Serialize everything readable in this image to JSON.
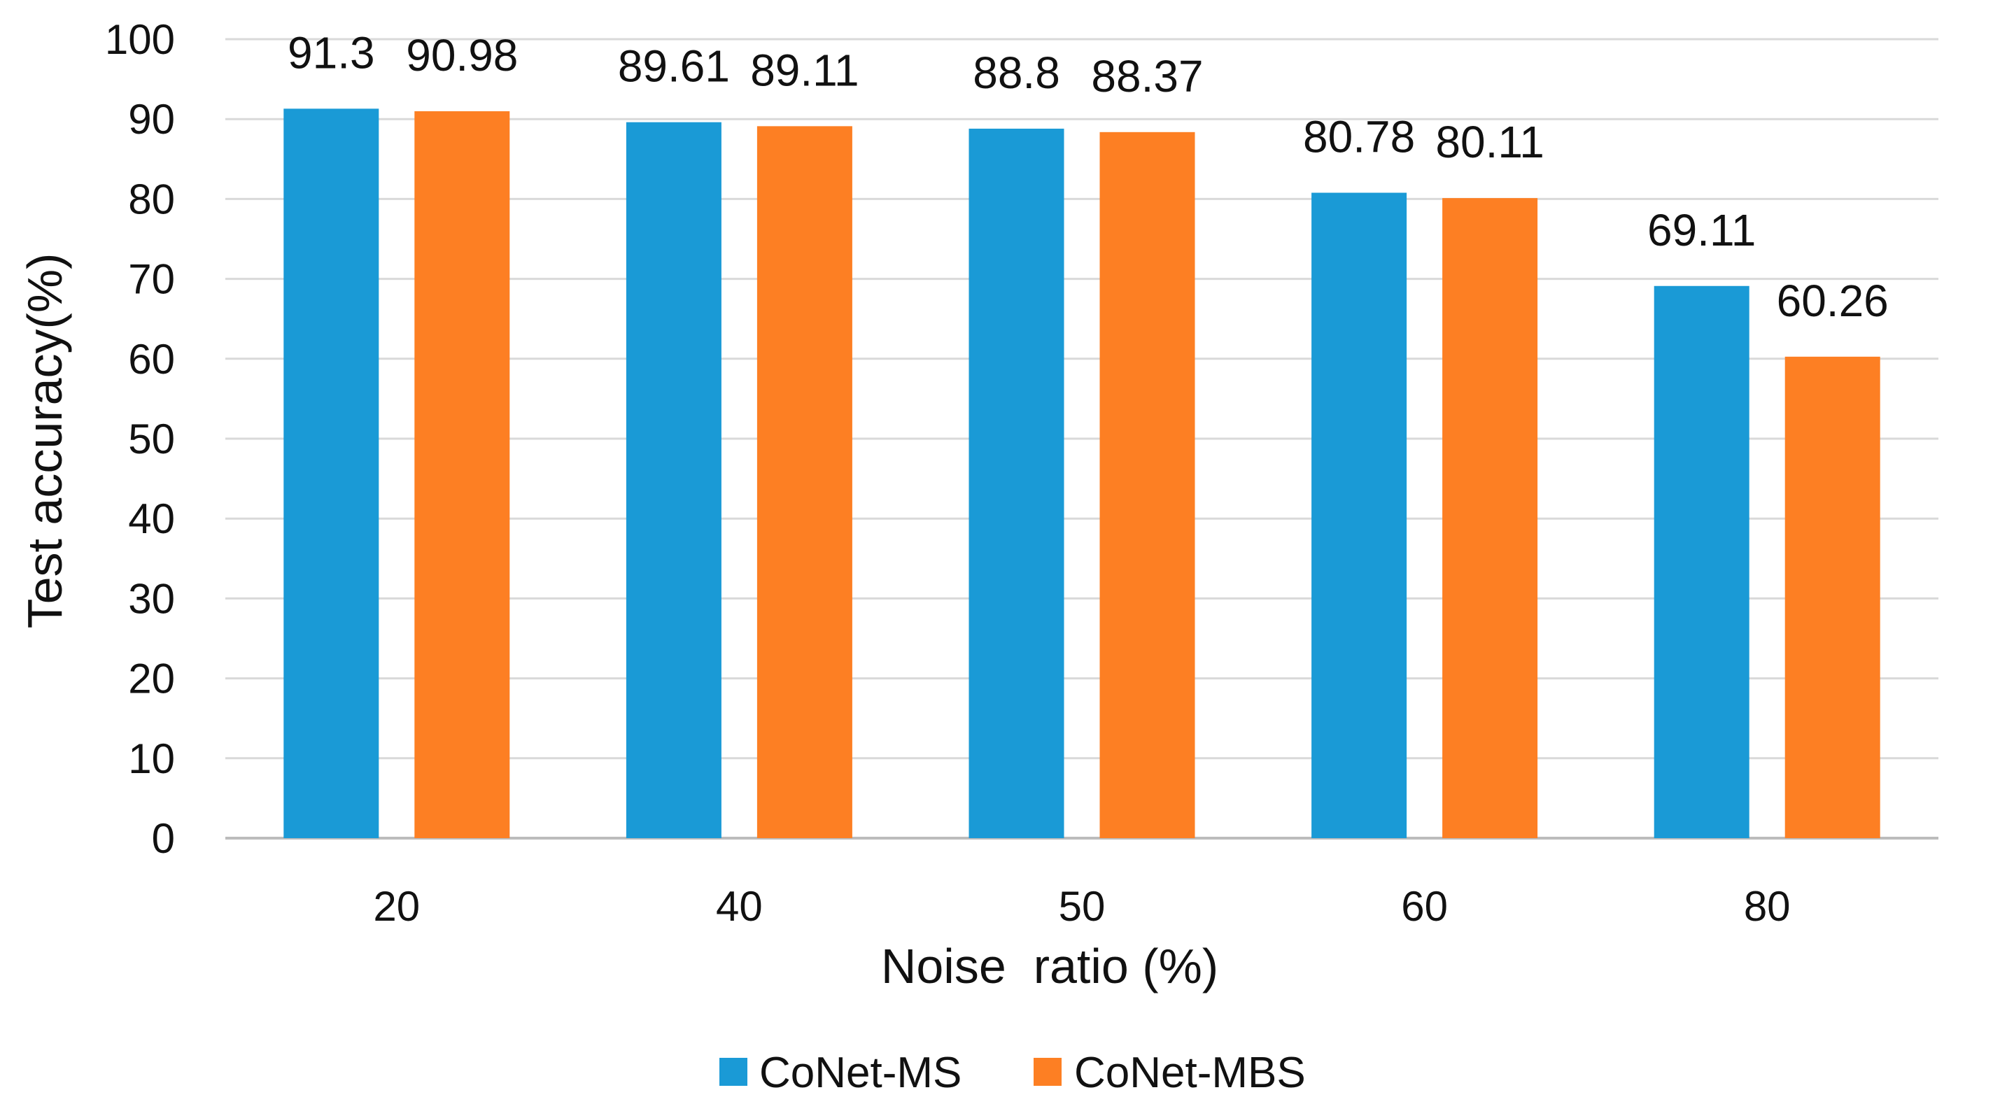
{
  "chart_data": {
    "type": "bar",
    "title": "",
    "xlabel": "Noise  ratio (%)",
    "ylabel": "Test accuracy(%)",
    "categories": [
      "20",
      "40",
      "50",
      "60",
      "80"
    ],
    "series": [
      {
        "name": "CoNet-MS",
        "color": "#1a9ad6",
        "values": [
          91.3,
          89.61,
          88.8,
          80.78,
          69.11
        ],
        "labels": [
          "91.3",
          "89.61",
          "88.8",
          "80.78",
          "69.11"
        ]
      },
      {
        "name": "CoNet-MBS",
        "color": "#fd7f23",
        "values": [
          90.98,
          89.11,
          88.37,
          80.11,
          60.26
        ],
        "labels": [
          "90.98",
          "89.11",
          "88.37",
          "80.11",
          "60.26"
        ]
      }
    ],
    "ylim": [
      0,
      100
    ],
    "yticks": [
      "0",
      "10",
      "20",
      "30",
      "40",
      "50",
      "60",
      "70",
      "80",
      "90",
      "100"
    ],
    "grid": true,
    "legend": "bottom-center"
  }
}
